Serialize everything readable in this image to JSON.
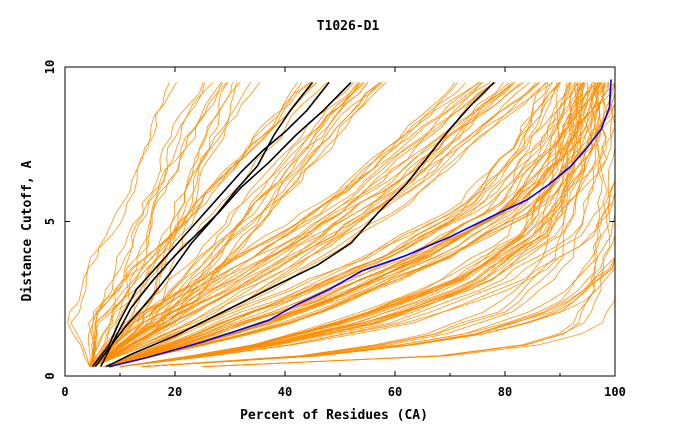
{
  "chart_data": {
    "type": "line",
    "title": "T1026-D1",
    "xlabel": "Percent of Residues (CA)",
    "ylabel": "Distance Cutoff, A",
    "xlim": [
      0,
      100
    ],
    "ylim": [
      0,
      10
    ],
    "x_ticks": [
      0,
      20,
      40,
      60,
      80,
      100
    ],
    "y_ticks": [
      0,
      5,
      10
    ],
    "x_tick_labels": [
      "0",
      "20",
      "40",
      "60",
      "80",
      "100"
    ],
    "y_tick_labels": [
      "0",
      "5",
      "10"
    ],
    "grid": false,
    "legend": "none",
    "colors": {
      "background_models": "#ff8c00",
      "highlight_black": "#000000",
      "highlight_blue": "#0000ff"
    },
    "background_bundles": [
      {
        "count": 14,
        "x": [
          4.5,
          9,
          13,
          17,
          21,
          25,
          27
        ],
        "y": [
          0.3,
          2.0,
          3.8,
          5.6,
          7.2,
          8.8,
          9.5
        ]
      },
      {
        "count": 20,
        "x": [
          5,
          12,
          20,
          28,
          36,
          44,
          50
        ],
        "y": [
          0.3,
          2.0,
          3.6,
          5.2,
          6.8,
          8.4,
          9.5
        ]
      },
      {
        "count": 26,
        "x": [
          5,
          17,
          31,
          45,
          58,
          70,
          80
        ],
        "y": [
          0.3,
          1.6,
          3.0,
          4.5,
          6.1,
          8.0,
          9.5
        ]
      },
      {
        "count": 32,
        "x": [
          7,
          25,
          44,
          62,
          78,
          88,
          95
        ],
        "y": [
          0.3,
          1.2,
          2.4,
          3.8,
          5.4,
          7.4,
          9.5
        ]
      },
      {
        "count": 24,
        "x": [
          10,
          35,
          58,
          76,
          89,
          96,
          98.5
        ],
        "y": [
          0.3,
          0.9,
          1.8,
          3.0,
          4.6,
          6.8,
          9.5
        ]
      },
      {
        "count": 12,
        "x": [
          14,
          42,
          68,
          85,
          94,
          98,
          99.5
        ],
        "y": [
          0.3,
          0.6,
          1.2,
          2.2,
          3.8,
          6.2,
          9.5
        ]
      },
      {
        "count": 4,
        "x": [
          25,
          60,
          82,
          93,
          98,
          99.5,
          100
        ],
        "y": [
          0.3,
          0.5,
          0.9,
          1.5,
          2.8,
          5.0,
          9.5
        ]
      }
    ],
    "series": [
      {
        "color": "#000000",
        "x": [
          5,
          8,
          10,
          13,
          17,
          21,
          24,
          28,
          32,
          36,
          40,
          44,
          48
        ],
        "y": [
          0.3,
          1.0,
          1.8,
          2.8,
          3.6,
          4.4,
          5.0,
          5.8,
          6.6,
          7.3,
          7.9,
          8.6,
          9.5
        ]
      },
      {
        "color": "#000000",
        "x": [
          5.5,
          8,
          11,
          15,
          19,
          23,
          27,
          31,
          35,
          38,
          41,
          45
        ],
        "y": [
          0.3,
          0.9,
          1.6,
          2.4,
          3.3,
          4.3,
          5.1,
          6.0,
          6.8,
          7.8,
          8.6,
          9.5
        ]
      },
      {
        "color": "#000000",
        "x": [
          6.5,
          9,
          12,
          16,
          20,
          24,
          28,
          32,
          37,
          42,
          47,
          52
        ],
        "y": [
          0.3,
          1.2,
          2.2,
          3.1,
          3.9,
          4.6,
          5.3,
          6.1,
          6.9,
          7.8,
          8.6,
          9.5
        ]
      },
      {
        "color": "#000000",
        "x": [
          7.5,
          12,
          20,
          29,
          38,
          46,
          52,
          57,
          62,
          66,
          70,
          74,
          78
        ],
        "y": [
          0.3,
          0.7,
          1.3,
          2.1,
          2.9,
          3.6,
          4.3,
          5.3,
          6.2,
          7.1,
          8.0,
          8.8,
          9.5
        ]
      },
      {
        "color": "#0000ff",
        "x": [
          8,
          15,
          25,
          37,
          42,
          48,
          54,
          62,
          70,
          78,
          84,
          88,
          92,
          95,
          97.5,
          99,
          99.3
        ],
        "y": [
          0.3,
          0.6,
          1.1,
          1.8,
          2.3,
          2.8,
          3.4,
          3.9,
          4.5,
          5.2,
          5.7,
          6.2,
          6.8,
          7.4,
          8.0,
          8.7,
          9.6
        ]
      }
    ]
  }
}
